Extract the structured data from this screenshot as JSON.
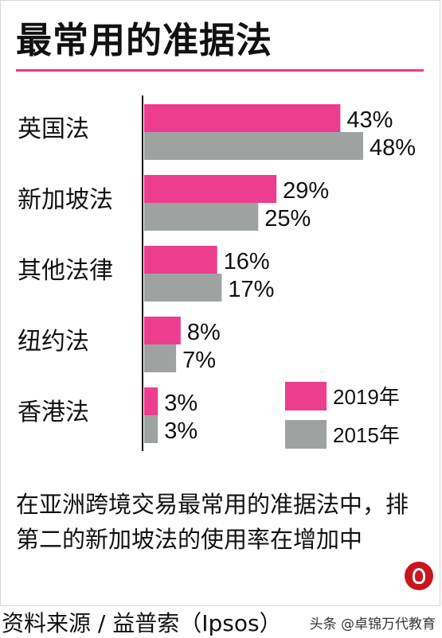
{
  "title": "最常用的准据法",
  "caption": "在亚洲跨境交易最常用的准据法中，排第二的新加坡法的使用率在增加中",
  "source": "资料来源 / 益普索（Ipsos）",
  "watermark": "头条 @卓锦万代教育",
  "colors": {
    "s2019": "#ec3d8e",
    "s2015": "#9ea3a1",
    "accent": "#e8388a"
  },
  "chart_data": {
    "type": "bar",
    "orientation": "horizontal",
    "title": "最常用的准据法",
    "categories": [
      "英国法",
      "新加坡法",
      "其他法律",
      "纽约法",
      "香港法"
    ],
    "series": [
      {
        "name": "2019年",
        "values": [
          43,
          29,
          16,
          8,
          3
        ],
        "labels": [
          "43%",
          "29%",
          "16%",
          "8%",
          "3%"
        ]
      },
      {
        "name": "2015年",
        "values": [
          48,
          25,
          17,
          7,
          3
        ],
        "labels": [
          "48%",
          "25%",
          "17%",
          "7%",
          "3%"
        ]
      }
    ],
    "xlim": [
      0,
      48
    ],
    "legend_position": "bottom-right",
    "grid": false
  }
}
